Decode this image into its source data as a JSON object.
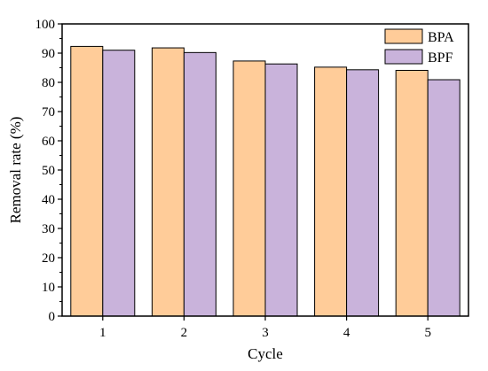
{
  "chart_data": {
    "type": "bar",
    "categories": [
      "1",
      "2",
      "3",
      "4",
      "5"
    ],
    "series": [
      {
        "name": "BPA",
        "color": "#ffcc99",
        "values": [
          92.3,
          91.8,
          87.3,
          85.2,
          84.1
        ]
      },
      {
        "name": "BPF",
        "color": "#c9b3db",
        "values": [
          91.0,
          90.2,
          86.3,
          84.3,
          80.9
        ]
      }
    ],
    "xlabel": "Cycle",
    "ylabel": "Removal rate (%)",
    "ylim": [
      0,
      100
    ],
    "yticks": [
      "0",
      "10",
      "20",
      "30",
      "40",
      "50",
      "60",
      "70",
      "80",
      "90",
      "100"
    ],
    "legend": "top-right",
    "grid": false
  }
}
